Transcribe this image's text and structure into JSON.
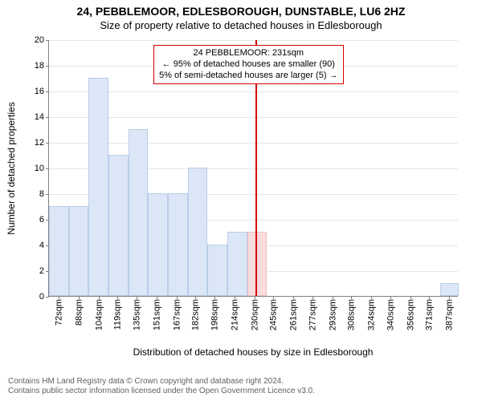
{
  "title_line1": "24, PEBBLEMOOR, EDLESBOROUGH, DUNSTABLE, LU6 2HZ",
  "title_line2": "Size of property relative to detached houses in Edlesborough",
  "ylabel": "Number of detached properties",
  "xlabel": "Distribution of detached houses by size in Edlesborough",
  "chart": {
    "type": "histogram",
    "background_color": "#ffffff",
    "grid_color": "#e5e5e5",
    "axis_color": "#808080",
    "ylim": [
      0,
      20
    ],
    "ytick_step": 2,
    "xlim": [
      64,
      395
    ],
    "bar_fill": "#dbe7f6",
    "bar_border": "#b9cde8",
    "subject_bar_fill": "#f9dcdc",
    "subject_bar_border": "#eec0c0",
    "subject_line_color": "#d40000",
    "subject_value": 231,
    "bars": [
      {
        "x0": 64,
        "x1": 80,
        "y": 7
      },
      {
        "x0": 80,
        "x1": 96,
        "y": 7
      },
      {
        "x0": 96,
        "x1": 112,
        "y": 17
      },
      {
        "x0": 112,
        "x1": 128,
        "y": 11
      },
      {
        "x0": 128,
        "x1": 144,
        "y": 13
      },
      {
        "x0": 144,
        "x1": 160,
        "y": 8
      },
      {
        "x0": 160,
        "x1": 176,
        "y": 8
      },
      {
        "x0": 176,
        "x1": 192,
        "y": 10
      },
      {
        "x0": 192,
        "x1": 208,
        "y": 4
      },
      {
        "x0": 208,
        "x1": 224,
        "y": 5
      },
      {
        "x0": 224,
        "x1": 240,
        "y": 5,
        "subject": true
      },
      {
        "x0": 380,
        "x1": 395,
        "y": 1
      }
    ],
    "xticks": [
      {
        "v": 72,
        "label": "72sqm"
      },
      {
        "v": 88,
        "label": "88sqm"
      },
      {
        "v": 104,
        "label": "104sqm"
      },
      {
        "v": 119,
        "label": "119sqm"
      },
      {
        "v": 135,
        "label": "135sqm"
      },
      {
        "v": 151,
        "label": "151sqm"
      },
      {
        "v": 167,
        "label": "167sqm"
      },
      {
        "v": 182,
        "label": "182sqm"
      },
      {
        "v": 198,
        "label": "198sqm"
      },
      {
        "v": 214,
        "label": "214sqm"
      },
      {
        "v": 230,
        "label": "230sqm"
      },
      {
        "v": 245,
        "label": "245sqm"
      },
      {
        "v": 261,
        "label": "261sqm"
      },
      {
        "v": 277,
        "label": "277sqm"
      },
      {
        "v": 293,
        "label": "293sqm"
      },
      {
        "v": 308,
        "label": "308sqm"
      },
      {
        "v": 324,
        "label": "324sqm"
      },
      {
        "v": 340,
        "label": "340sqm"
      },
      {
        "v": 356,
        "label": "356sqm"
      },
      {
        "v": 371,
        "label": "371sqm"
      },
      {
        "v": 387,
        "label": "387sqm"
      }
    ]
  },
  "callout": {
    "border_color": "#d40000",
    "line1": "24 PEBBLEMOOR: 231sqm",
    "line2": "← 95% of detached houses are smaller (90)",
    "line3": "5% of semi-detached houses are larger (5) →"
  },
  "footer": {
    "line1": "Contains HM Land Registry data © Crown copyright and database right 2024.",
    "line2": "Contains public sector information licensed under the Open Government Licence v3.0."
  }
}
